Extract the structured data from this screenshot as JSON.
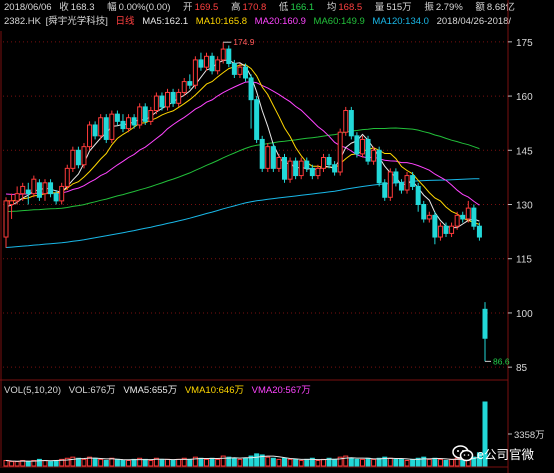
{
  "header": {
    "date": "2018/06/06",
    "close_label": "收",
    "close": "168.3",
    "change_label": "幅",
    "change": "0.00%(0.00)",
    "open_label": "开",
    "open": "169.5",
    "high_label": "高",
    "high": "170.8",
    "low_label": "低",
    "low": "166.1",
    "avg_label": "均",
    "avg": "168.5",
    "volume_label": "量",
    "volume": "515万",
    "amplitude_label": "振",
    "amplitude": "2.79%",
    "amount_label": "额",
    "amount": "8.68亿"
  },
  "legend": {
    "symbol": "2382.HK",
    "name": "[舜宇光学科技]",
    "period": "日线",
    "ma5": "MA5:162.1",
    "ma10": "MA10:165.8",
    "ma20": "MA20:160.9",
    "ma60": "MA60:149.9",
    "ma120": "MA120:134.0",
    "range": "2018/04/26-2018/"
  },
  "volume_legend": {
    "title": "VOL(5,10,20)",
    "vol": "VOL:676万",
    "vma5": "VMA5:655万",
    "vma10": "VMA10:646万",
    "vma20": "VMA20:567万"
  },
  "volume_axis_label": "3358万",
  "watermark": "e公司官微",
  "colors": {
    "background": "#000000",
    "up": "#ff3b3b",
    "down": "#22d8d8",
    "ma5": "#e8e8e8",
    "ma10": "#ffd700",
    "ma20": "#ff44ff",
    "ma60": "#22c03a",
    "ma120": "#19b8e8",
    "grid": "#7a1010",
    "text": "#d8d8d8"
  },
  "chart_data": {
    "type": "candlestick",
    "title": "",
    "price_axis": {
      "ticks": [
        175,
        160,
        145,
        130,
        115,
        100,
        85
      ],
      "ylim": [
        82,
        178
      ]
    },
    "annotations": [
      {
        "label": "174.9",
        "value": 174.9,
        "kind": "high"
      },
      {
        "label": "86.6",
        "value": 86.6,
        "kind": "low"
      }
    ],
    "candles": [
      [
        121,
        131,
        118,
        132
      ],
      [
        130,
        131,
        126,
        133
      ],
      [
        131,
        133,
        130,
        135
      ],
      [
        133,
        135,
        131,
        136
      ],
      [
        134,
        133,
        130,
        136
      ],
      [
        133,
        137,
        132,
        138
      ],
      [
        136,
        132,
        131,
        137
      ],
      [
        133,
        136,
        131,
        137
      ],
      [
        136,
        133,
        132,
        137
      ],
      [
        133,
        131,
        130,
        134
      ],
      [
        131,
        135,
        130,
        136
      ],
      [
        135,
        140,
        134,
        141
      ],
      [
        140,
        145,
        139,
        146
      ],
      [
        145,
        141,
        140,
        146
      ],
      [
        141,
        146,
        140,
        147
      ],
      [
        146,
        152,
        145,
        153
      ],
      [
        152,
        149,
        148,
        153
      ],
      [
        149,
        154,
        148,
        155
      ],
      [
        154,
        148,
        147,
        155
      ],
      [
        148,
        155,
        147,
        156
      ],
      [
        155,
        153,
        152,
        156
      ],
      [
        153,
        151,
        150,
        155
      ],
      [
        151,
        154,
        150,
        155
      ],
      [
        154,
        152,
        151,
        155
      ],
      [
        152,
        157,
        151,
        158
      ],
      [
        157,
        153,
        152,
        158
      ],
      [
        153,
        156,
        152,
        157
      ],
      [
        156,
        160,
        155,
        161
      ],
      [
        160,
        157,
        156,
        161
      ],
      [
        157,
        161,
        156,
        162
      ],
      [
        161,
        158,
        157,
        162
      ],
      [
        158,
        161,
        157,
        162
      ],
      [
        161,
        164,
        160,
        165
      ],
      [
        164,
        163,
        162,
        166
      ],
      [
        163,
        170,
        162,
        171
      ],
      [
        170,
        168,
        167,
        172
      ],
      [
        168,
        171,
        167,
        172
      ],
      [
        171,
        167,
        166,
        172
      ],
      [
        167,
        170,
        166,
        171
      ],
      [
        170,
        173,
        169,
        174.9
      ],
      [
        173,
        169,
        168,
        174
      ],
      [
        169,
        166,
        165,
        170
      ],
      [
        166,
        168,
        165,
        169
      ],
      [
        168,
        165,
        164,
        169
      ],
      [
        165,
        159,
        151,
        166
      ],
      [
        159,
        148,
        147,
        160
      ],
      [
        148,
        140,
        139,
        149
      ],
      [
        140,
        146,
        139,
        147
      ],
      [
        146,
        140,
        139,
        147
      ],
      [
        140,
        143,
        139,
        144
      ],
      [
        143,
        137,
        136,
        144
      ],
      [
        137,
        142,
        136,
        143
      ],
      [
        142,
        138,
        137,
        143
      ],
      [
        138,
        142,
        137,
        143
      ],
      [
        142,
        140,
        139,
        143
      ],
      [
        140,
        138,
        137,
        141
      ],
      [
        138,
        140,
        137,
        141
      ],
      [
        140,
        143,
        139,
        144
      ],
      [
        143,
        141,
        140,
        144
      ],
      [
        141,
        139,
        138,
        142
      ],
      [
        139,
        150,
        138,
        151
      ],
      [
        150,
        156,
        149,
        157
      ],
      [
        156,
        149,
        148,
        157
      ],
      [
        149,
        144,
        143,
        150
      ],
      [
        144,
        148,
        143,
        149
      ],
      [
        148,
        142,
        141,
        149
      ],
      [
        142,
        145,
        141,
        146
      ],
      [
        145,
        136,
        135,
        146
      ],
      [
        136,
        132,
        131,
        137
      ],
      [
        132,
        139,
        131,
        140
      ],
      [
        139,
        136,
        135,
        140
      ],
      [
        136,
        134,
        133,
        137
      ],
      [
        134,
        138,
        133,
        139
      ],
      [
        138,
        135,
        134,
        139
      ],
      [
        135,
        130,
        128,
        136
      ],
      [
        130,
        126,
        125,
        131
      ],
      [
        126,
        127,
        125,
        128
      ],
      [
        127,
        121,
        119,
        128
      ],
      [
        121,
        124,
        120,
        125
      ],
      [
        124,
        122,
        121,
        125
      ],
      [
        122,
        124,
        121,
        125
      ],
      [
        124,
        127,
        123,
        128
      ],
      [
        127,
        126,
        125,
        128
      ],
      [
        126,
        129,
        125,
        131
      ],
      [
        129,
        124,
        123,
        130
      ],
      [
        124,
        121,
        120,
        125
      ],
      [
        101,
        93,
        86.6,
        103
      ]
    ],
    "volumes": [
      5,
      4,
      4,
      5,
      4,
      5,
      6,
      5,
      4,
      5,
      6,
      7,
      8,
      7,
      6,
      8,
      7,
      6,
      5,
      7,
      6,
      5,
      5,
      6,
      7,
      6,
      5,
      7,
      6,
      6,
      5,
      6,
      7,
      6,
      8,
      7,
      6,
      7,
      6,
      9,
      8,
      7,
      6,
      7,
      9,
      11,
      10,
      8,
      7,
      6,
      7,
      6,
      6,
      5,
      6,
      7,
      5,
      6,
      7,
      6,
      8,
      9,
      7,
      6,
      6,
      7,
      6,
      7,
      8,
      7,
      6,
      6,
      5,
      6,
      7,
      8,
      6,
      7,
      6,
      5,
      6,
      7,
      6,
      7,
      8,
      12,
      58
    ],
    "volume_axis": {
      "tick": 3358,
      "unit": "万"
    }
  }
}
